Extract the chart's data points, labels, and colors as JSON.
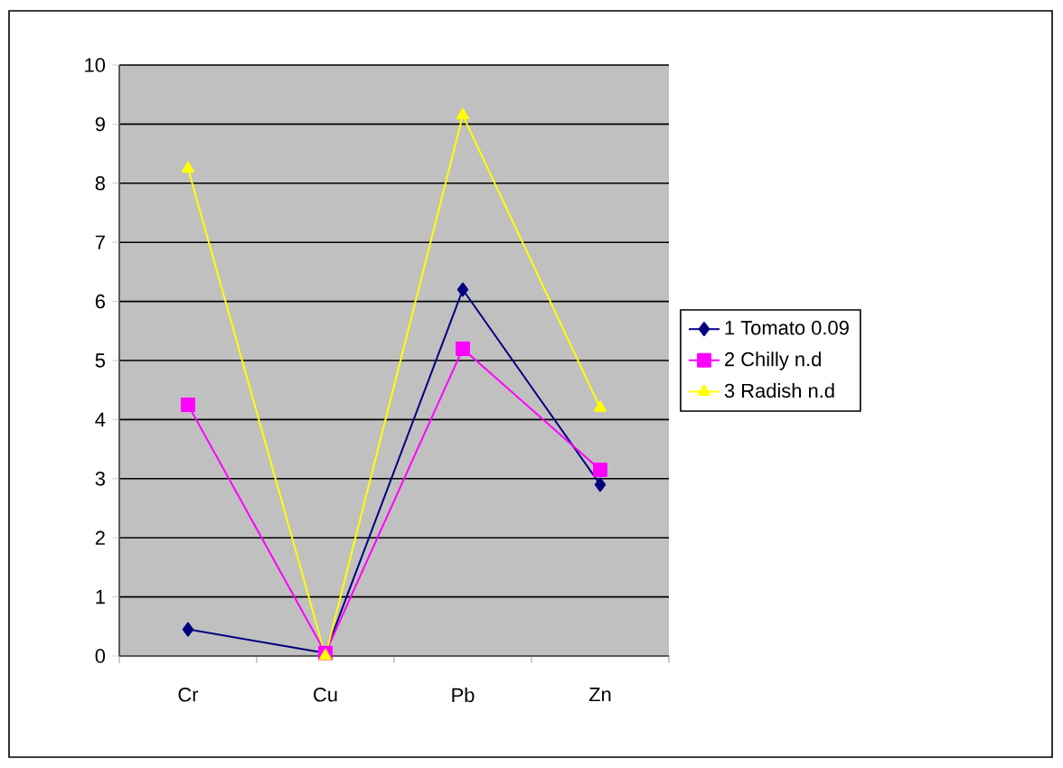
{
  "chart_data": {
    "type": "line",
    "categories": [
      "Cr",
      "Cu",
      "Pb",
      "Zn"
    ],
    "series": [
      {
        "name": "1 Tomato 0.09",
        "color": "#000080",
        "marker": "diamond",
        "values": [
          0.45,
          0.05,
          6.2,
          2.9
        ]
      },
      {
        "name": "2 Chilly n.d",
        "color": "#ff00ff",
        "marker": "square",
        "values": [
          4.25,
          0.05,
          5.2,
          3.15
        ]
      },
      {
        "name": "3 Radish n.d",
        "color": "#ffff00",
        "marker": "triangle",
        "values": [
          8.25,
          0,
          9.15,
          4.2
        ]
      }
    ],
    "ylim": [
      0,
      10
    ],
    "yticks": [
      0,
      1,
      2,
      3,
      4,
      5,
      6,
      7,
      8,
      9,
      10
    ],
    "grid": "y",
    "legend": "right",
    "line_style": "solid"
  }
}
